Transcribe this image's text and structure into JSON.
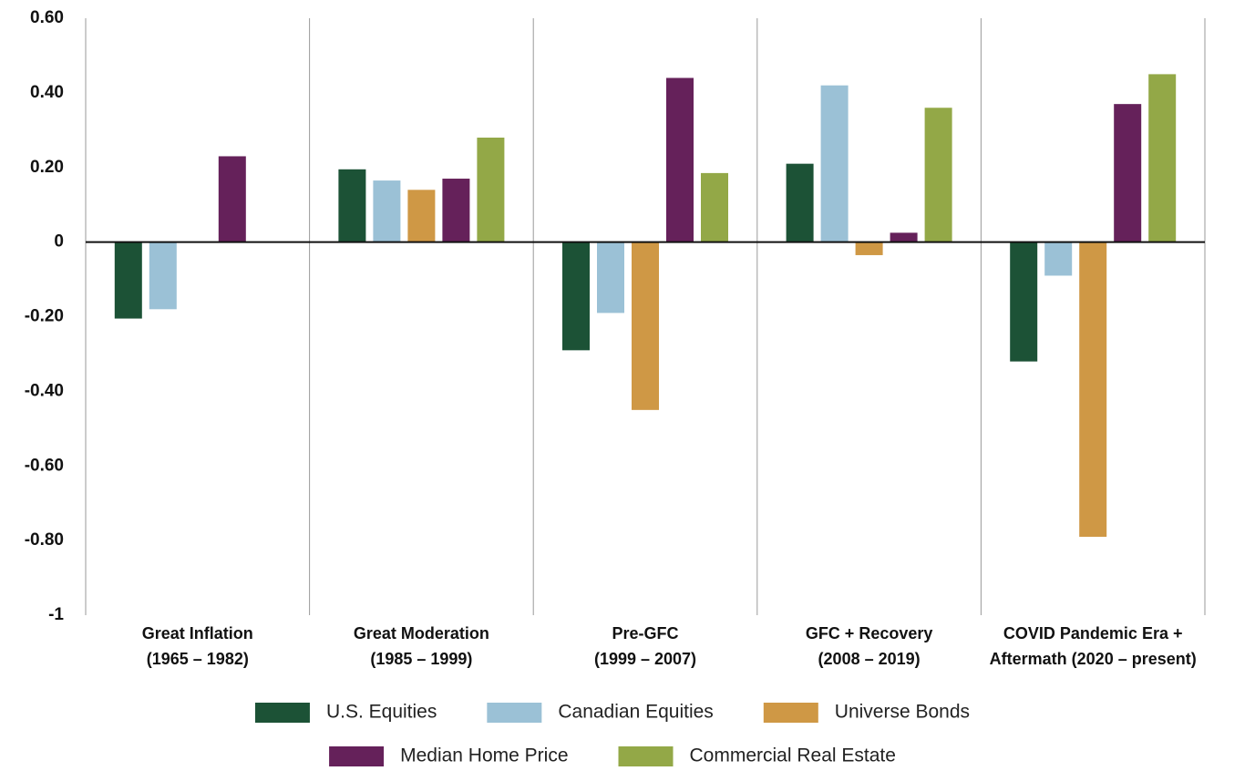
{
  "chart_data": {
    "type": "bar",
    "categories": [
      [
        "Great Inflation",
        "(1965 – 1982)"
      ],
      [
        "Great Moderation",
        "(1985 – 1999)"
      ],
      [
        "Pre-GFC",
        "(1999 – 2007)"
      ],
      [
        "GFC + Recovery",
        "(2008 – 2019)"
      ],
      [
        "COVID Pandemic Era +",
        "Aftermath (2020 – present)"
      ]
    ],
    "series": [
      {
        "name": "U.S. Equities",
        "color": "#1c5236",
        "values": [
          -0.205,
          0.195,
          -0.29,
          0.21,
          -0.32
        ]
      },
      {
        "name": "Canadian Equities",
        "color": "#9bc1d6",
        "values": [
          -0.18,
          0.165,
          -0.19,
          0.42,
          -0.09
        ]
      },
      {
        "name": "Universe Bonds",
        "color": "#cf9845",
        "values": [
          null,
          0.14,
          -0.45,
          -0.035,
          -0.79
        ]
      },
      {
        "name": "Median Home Price",
        "color": "#65215a",
        "values": [
          0.23,
          0.17,
          0.44,
          0.025,
          0.37
        ]
      },
      {
        "name": "Commercial Real Estate",
        "color": "#93a847",
        "values": [
          null,
          0.28,
          0.185,
          0.36,
          0.45
        ]
      }
    ],
    "ylim": [
      -1,
      0.6
    ],
    "yticks": [
      {
        "value": 0.6,
        "label": "0.60"
      },
      {
        "value": 0.4,
        "label": "0.40"
      },
      {
        "value": 0.2,
        "label": "0.20"
      },
      0,
      {
        "value": -0.2,
        "label": "-0.20"
      },
      {
        "value": -0.4,
        "label": "-0.40"
      },
      {
        "value": -0.6,
        "label": "-0.60"
      },
      {
        "value": -0.8,
        "label": "-0.80"
      },
      -1
    ],
    "grid": false,
    "legend": "bottom"
  }
}
